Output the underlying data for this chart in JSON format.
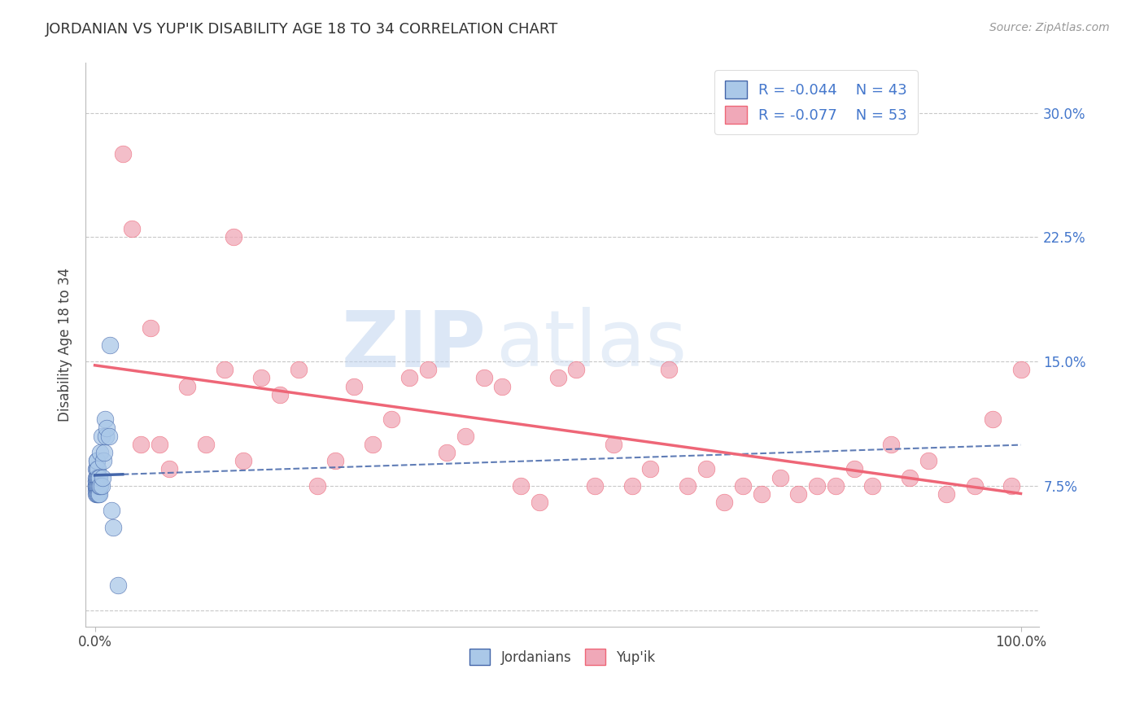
{
  "title": "JORDANIAN VS YUP'IK DISABILITY AGE 18 TO 34 CORRELATION CHART",
  "source": "Source: ZipAtlas.com",
  "ylabel": "Disability Age 18 to 34",
  "xlim": [
    -1,
    102
  ],
  "ylim": [
    -1,
    33
  ],
  "y_ticks": [
    0,
    7.5,
    15.0,
    22.5,
    30.0
  ],
  "y_tick_labels": [
    "",
    "7.5%",
    "15.0%",
    "22.5%",
    "30.0%"
  ],
  "background_color": "#ffffff",
  "grid_color": "#c8c8c8",
  "legend_r1": "-0.044",
  "legend_n1": "43",
  "legend_r2": "-0.077",
  "legend_n2": "53",
  "jordanian_color": "#aac8e8",
  "yupik_color": "#f0a8b8",
  "trend_jordanian_color": "#4466aa",
  "trend_yupik_color": "#ee6677",
  "watermark_zip": "ZIP",
  "watermark_atlas": "atlas",
  "jordanian_x": [
    0.1,
    0.1,
    0.1,
    0.1,
    0.1,
    0.1,
    0.15,
    0.15,
    0.15,
    0.15,
    0.2,
    0.2,
    0.2,
    0.2,
    0.2,
    0.25,
    0.25,
    0.25,
    0.3,
    0.3,
    0.3,
    0.3,
    0.4,
    0.4,
    0.4,
    0.5,
    0.5,
    0.5,
    0.6,
    0.6,
    0.7,
    0.7,
    0.8,
    0.9,
    1.0,
    1.1,
    1.2,
    1.3,
    1.5,
    1.6,
    1.8,
    2.0,
    2.5
  ],
  "jordanian_y": [
    7.0,
    7.2,
    7.4,
    7.5,
    7.6,
    7.8,
    7.5,
    7.8,
    8.0,
    8.5,
    7.0,
    7.5,
    8.0,
    8.5,
    9.0,
    7.5,
    8.0,
    9.0,
    7.0,
    7.5,
    8.0,
    8.5,
    7.0,
    7.5,
    8.0,
    7.0,
    7.5,
    8.0,
    7.5,
    9.5,
    7.5,
    10.5,
    8.0,
    9.0,
    9.5,
    11.5,
    10.5,
    11.0,
    10.5,
    16.0,
    6.0,
    5.0,
    1.5
  ],
  "yupik_x": [
    3.0,
    4.0,
    6.0,
    7.0,
    10.0,
    12.0,
    14.0,
    16.0,
    18.0,
    20.0,
    22.0,
    24.0,
    26.0,
    28.0,
    30.0,
    32.0,
    34.0,
    36.0,
    38.0,
    40.0,
    42.0,
    44.0,
    46.0,
    48.0,
    50.0,
    52.0,
    54.0,
    56.0,
    58.0,
    60.0,
    62.0,
    64.0,
    66.0,
    68.0,
    70.0,
    72.0,
    74.0,
    76.0,
    78.0,
    80.0,
    82.0,
    84.0,
    86.0,
    88.0,
    90.0,
    92.0,
    95.0,
    97.0,
    99.0,
    100.0,
    5.0,
    8.0,
    15.0
  ],
  "yupik_y": [
    27.5,
    23.0,
    17.0,
    10.0,
    13.5,
    10.0,
    14.5,
    9.0,
    14.0,
    13.0,
    14.5,
    7.5,
    9.0,
    13.5,
    10.0,
    11.5,
    14.0,
    14.5,
    9.5,
    10.5,
    14.0,
    13.5,
    7.5,
    6.5,
    14.0,
    14.5,
    7.5,
    10.0,
    7.5,
    8.5,
    14.5,
    7.5,
    8.5,
    6.5,
    7.5,
    7.0,
    8.0,
    7.0,
    7.5,
    7.5,
    8.5,
    7.5,
    10.0,
    8.0,
    9.0,
    7.0,
    7.5,
    11.5,
    7.5,
    14.5,
    10.0,
    8.5,
    22.5
  ]
}
